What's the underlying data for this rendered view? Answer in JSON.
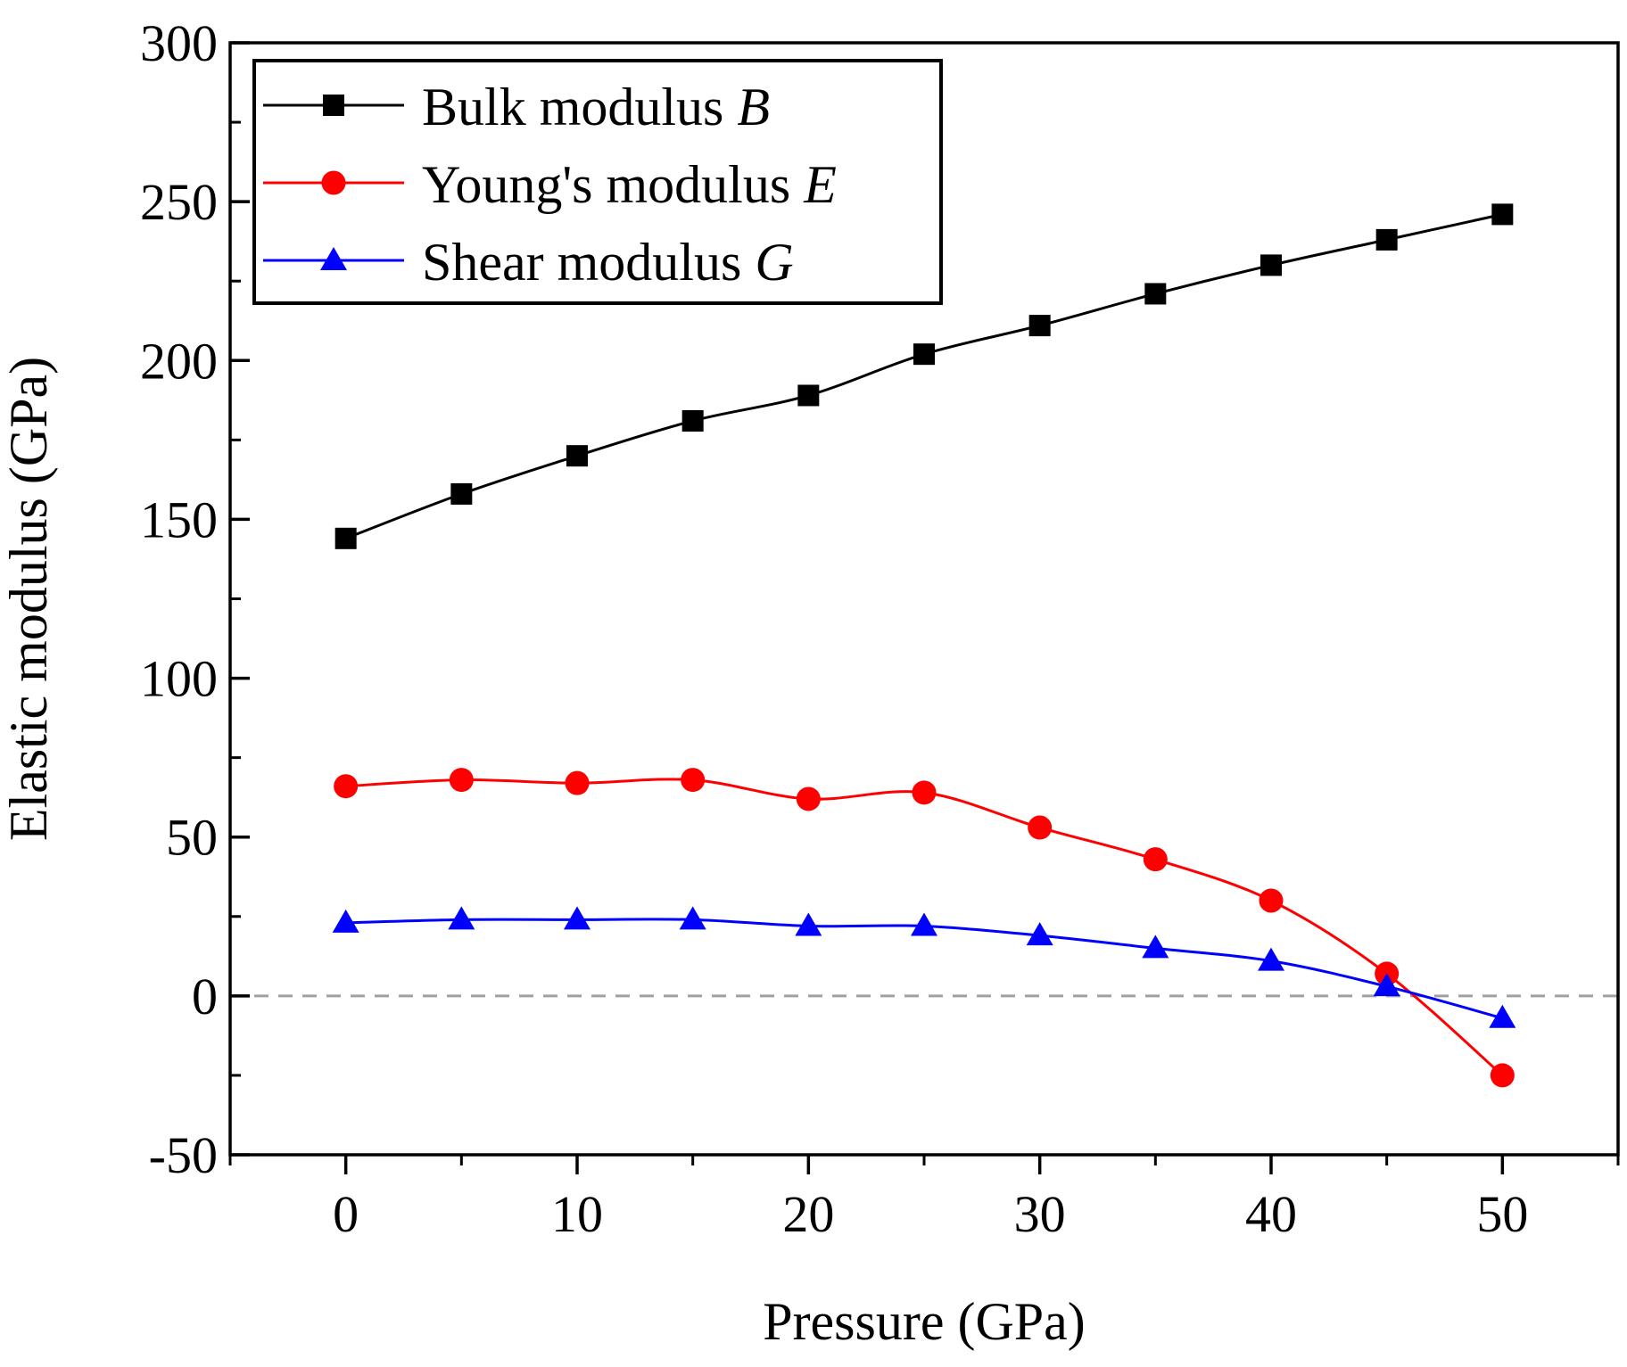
{
  "chart_data": {
    "type": "line",
    "title": "",
    "xlabel": "Pressure (GPa)",
    "ylabel": "Elastic modulus (GPa)",
    "xlim": [
      -5,
      55
    ],
    "ylim": [
      -50,
      300
    ],
    "x_ticks": [
      0,
      10,
      20,
      30,
      40,
      50
    ],
    "y_ticks": [
      -50,
      0,
      50,
      100,
      150,
      200,
      250,
      300
    ],
    "grid": false,
    "legend_position": "top-left",
    "reference_line": {
      "y": 0,
      "style": "dashed",
      "color": "#a0a0a0"
    },
    "x": [
      0,
      5,
      10,
      15,
      20,
      25,
      30,
      35,
      40,
      45,
      50
    ],
    "series": [
      {
        "name": "Bulk modulus",
        "symbol": "B",
        "color": "#000000",
        "marker": "square",
        "values": [
          144,
          158,
          170,
          181,
          189,
          202,
          211,
          221,
          230,
          238,
          246
        ]
      },
      {
        "name": "Young's modulus",
        "symbol": "E",
        "color": "#ff0000",
        "marker": "circle",
        "values": [
          66,
          68,
          67,
          68,
          62,
          64,
          53,
          43,
          30,
          7,
          -25
        ]
      },
      {
        "name": "Shear modulus",
        "symbol": "G",
        "color": "#0000ff",
        "marker": "triangle",
        "values": [
          23,
          24,
          24,
          24,
          22,
          22,
          19,
          15,
          11,
          3,
          -7
        ]
      }
    ]
  }
}
